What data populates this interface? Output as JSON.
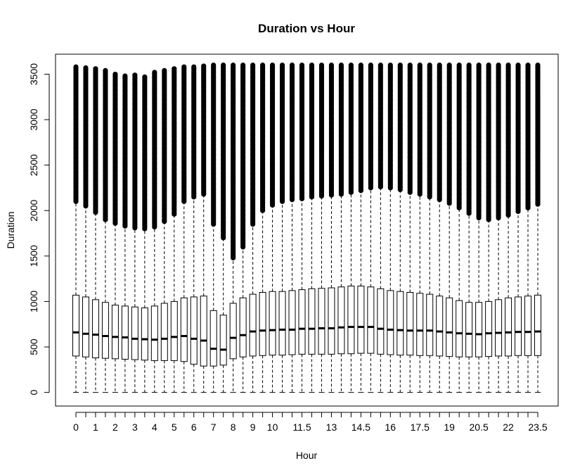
{
  "chart_data": {
    "type": "boxplot",
    "title": "Duration vs Hour",
    "xlabel": "Hour",
    "ylabel": "Duration",
    "ylim": [
      -150,
      3720
    ],
    "y_ticks": [
      0,
      500,
      1000,
      1500,
      2000,
      2500,
      3000,
      3500
    ],
    "x_tick_labels": [
      "0",
      "1",
      "2",
      "3",
      "4",
      "5",
      "6",
      "7",
      "8",
      "9",
      "10",
      "11.5",
      "13",
      "14.5",
      "16",
      "17.5",
      "19",
      "20.5",
      "22",
      "23.5"
    ],
    "x_labeled_positions": [
      0,
      2,
      4,
      6,
      8,
      10,
      12,
      14,
      16,
      18,
      20,
      23,
      26,
      29,
      32,
      35,
      38,
      41,
      44,
      47
    ],
    "x": [
      0,
      0.5,
      1,
      1.5,
      2,
      2.5,
      3,
      3.5,
      4,
      4.5,
      5,
      5.5,
      6,
      6.5,
      7,
      7.5,
      8,
      8.5,
      9,
      9.5,
      10,
      10.5,
      11,
      11.5,
      12,
      12.5,
      13,
      13.5,
      14,
      14.5,
      15,
      15.5,
      16,
      16.5,
      17,
      17.5,
      18,
      18.5,
      19,
      19.5,
      20,
      20.5,
      21,
      21.5,
      22,
      22.5,
      23,
      23.5
    ],
    "series": [
      {
        "whisker_low": [
          0,
          0,
          0,
          0,
          0,
          0,
          0,
          0,
          0,
          0,
          0,
          0,
          0,
          0,
          0,
          0,
          0,
          0,
          0,
          0,
          0,
          0,
          0,
          0,
          0,
          0,
          0,
          0,
          0,
          0,
          0,
          0,
          0,
          0,
          0,
          0,
          0,
          0,
          0,
          0,
          0,
          0,
          0,
          0,
          0,
          0,
          0,
          0
        ],
        "q1": [
          400,
          390,
          380,
          375,
          370,
          365,
          360,
          355,
          350,
          350,
          350,
          340,
          310,
          290,
          290,
          300,
          370,
          390,
          400,
          405,
          410,
          410,
          415,
          420,
          420,
          420,
          420,
          425,
          425,
          430,
          430,
          420,
          415,
          410,
          410,
          405,
          405,
          400,
          395,
          390,
          390,
          390,
          395,
          400,
          400,
          405,
          405,
          405
        ],
        "median": [
          660,
          645,
          635,
          620,
          610,
          605,
          590,
          585,
          580,
          590,
          610,
          620,
          590,
          570,
          480,
          470,
          600,
          630,
          670,
          680,
          685,
          690,
          690,
          700,
          700,
          705,
          705,
          715,
          720,
          720,
          720,
          700,
          690,
          685,
          680,
          680,
          680,
          670,
          660,
          650,
          645,
          640,
          650,
          655,
          660,
          665,
          665,
          670
        ],
        "q3": [
          1070,
          1050,
          1020,
          990,
          960,
          950,
          940,
          930,
          950,
          980,
          1000,
          1040,
          1050,
          1060,
          900,
          850,
          980,
          1040,
          1080,
          1100,
          1110,
          1110,
          1120,
          1130,
          1140,
          1145,
          1150,
          1160,
          1170,
          1170,
          1160,
          1140,
          1120,
          1110,
          1100,
          1090,
          1080,
          1060,
          1040,
          1010,
          990,
          990,
          1000,
          1020,
          1040,
          1050,
          1060,
          1070
        ],
        "whisker_high": [
          2100,
          2050,
          1980,
          1900,
          1860,
          1830,
          1810,
          1800,
          1820,
          1880,
          1960,
          2100,
          2150,
          2180,
          1850,
          1700,
          1480,
          1600,
          1850,
          2000,
          2060,
          2100,
          2120,
          2130,
          2150,
          2160,
          2170,
          2180,
          2200,
          2220,
          2250,
          2260,
          2250,
          2230,
          2200,
          2180,
          2150,
          2120,
          2080,
          2030,
          1970,
          1920,
          1900,
          1920,
          1950,
          1990,
          2030,
          2070
        ],
        "outlier_max": [
          3580,
          3570,
          3560,
          3540,
          3500,
          3480,
          3490,
          3470,
          3520,
          3540,
          3560,
          3580,
          3580,
          3590,
          3600,
          3600,
          3600,
          3600,
          3600,
          3600,
          3600,
          3600,
          3600,
          3600,
          3600,
          3600,
          3600,
          3600,
          3600,
          3600,
          3600,
          3600,
          3600,
          3600,
          3600,
          3600,
          3600,
          3600,
          3600,
          3600,
          3600,
          3600,
          3600,
          3600,
          3600,
          3600,
          3600,
          3600
        ]
      }
    ],
    "grid": false,
    "legend": "none"
  }
}
